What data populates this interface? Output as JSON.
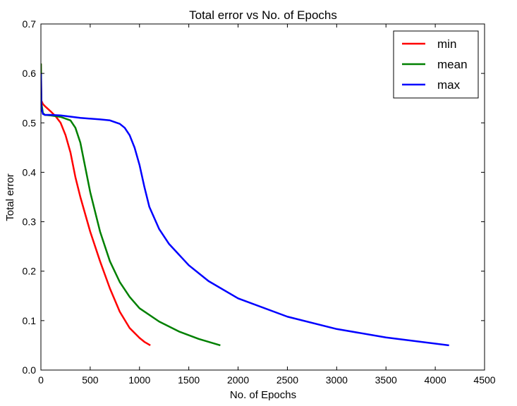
{
  "chart_data": {
    "type": "line",
    "title": "Total error vs No. of Epochs",
    "xlabel": "No. of Epochs",
    "ylabel": "Total error",
    "xlim": [
      0,
      4500
    ],
    "ylim": [
      0,
      0.7
    ],
    "xticks": [
      0,
      500,
      1000,
      1500,
      2000,
      2500,
      3000,
      3500,
      4000,
      4500
    ],
    "xtick_labels": [
      "0",
      "500",
      "1000",
      "1500",
      "2000",
      "2500",
      "3000",
      "3500",
      "4000",
      "4500"
    ],
    "yticks": [
      0.0,
      0.1,
      0.2,
      0.3,
      0.4,
      0.5,
      0.6,
      0.7
    ],
    "ytick_labels": [
      "0.0",
      "0.1",
      "0.2",
      "0.3",
      "0.4",
      "0.5",
      "0.6",
      "0.7"
    ],
    "grid": false,
    "legend_position": "top-right",
    "series": [
      {
        "name": "min",
        "color": "#ff0000",
        "x": [
          0,
          5,
          20,
          50,
          100,
          150,
          200,
          250,
          300,
          350,
          400,
          500,
          600,
          700,
          800,
          900,
          1000,
          1050,
          1110
        ],
        "y": [
          0.62,
          0.545,
          0.538,
          0.532,
          0.523,
          0.513,
          0.5,
          0.475,
          0.44,
          0.39,
          0.35,
          0.28,
          0.22,
          0.165,
          0.118,
          0.085,
          0.065,
          0.057,
          0.05
        ]
      },
      {
        "name": "mean",
        "color": "#008000",
        "x": [
          0,
          5,
          20,
          40,
          100,
          200,
          300,
          350,
          400,
          450,
          500,
          600,
          700,
          800,
          900,
          1000,
          1200,
          1400,
          1600,
          1820
        ],
        "y": [
          0.62,
          0.54,
          0.52,
          0.516,
          0.515,
          0.512,
          0.505,
          0.49,
          0.46,
          0.41,
          0.36,
          0.28,
          0.22,
          0.178,
          0.148,
          0.125,
          0.098,
          0.078,
          0.063,
          0.05
        ]
      },
      {
        "name": "max",
        "color": "#0000ff",
        "x": [
          0,
          5,
          20,
          40,
          100,
          200,
          400,
          600,
          700,
          800,
          850,
          900,
          950,
          1000,
          1050,
          1100,
          1200,
          1300,
          1500,
          1700,
          2000,
          2500,
          3000,
          3500,
          4140
        ],
        "y": [
          0.6,
          0.53,
          0.518,
          0.516,
          0.516,
          0.515,
          0.51,
          0.507,
          0.505,
          0.498,
          0.49,
          0.475,
          0.45,
          0.415,
          0.37,
          0.33,
          0.285,
          0.255,
          0.212,
          0.18,
          0.145,
          0.108,
          0.083,
          0.066,
          0.05
        ]
      }
    ]
  }
}
